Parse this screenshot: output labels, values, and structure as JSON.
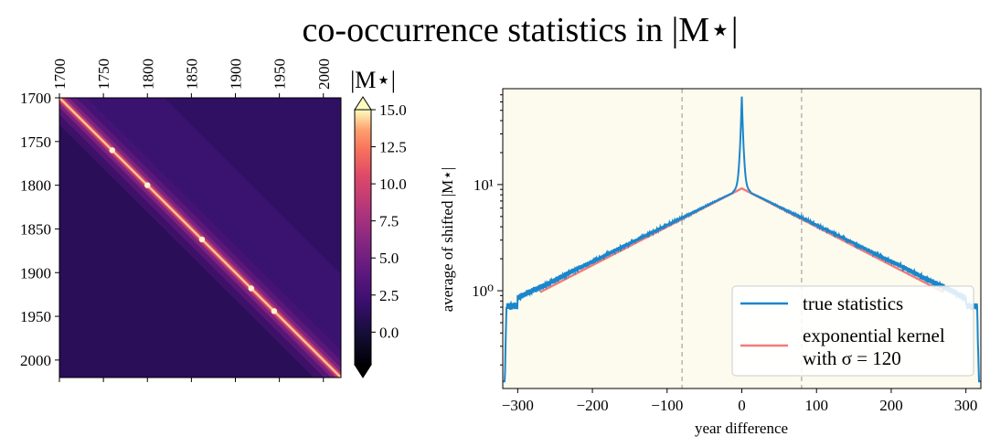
{
  "title": "co-occurrence statistics in |M⋆|",
  "colors": {
    "background_right": "#fdfaee",
    "true_line": "#1a86cc",
    "kernel_line": "#f07c78",
    "dashed": "#aaaaaa"
  },
  "chart_data": [
    {
      "type": "heatmap",
      "title": "",
      "x_ticks": [
        "1700",
        "1750",
        "1800",
        "1850",
        "1900",
        "1950",
        "2000"
      ],
      "y_ticks": [
        "1700",
        "1750",
        "1800",
        "1850",
        "1900",
        "1950",
        "2000"
      ],
      "x_range": [
        1700,
        2020
      ],
      "y_range": [
        1700,
        2020
      ],
      "colormap": "magma",
      "colorbar": {
        "label": "|M⋆|",
        "ticks": [
          "15.0",
          "12.5",
          "10.0",
          "7.5",
          "5.0",
          "2.5",
          "0.0"
        ],
        "range": [
          -2.2,
          15.0
        ],
        "extend": "both"
      },
      "bright_spots": [
        1760,
        1800,
        1862,
        1918,
        1944
      ]
    },
    {
      "type": "line",
      "xlabel": "year difference",
      "ylabel": "average of shifted |M⋆|",
      "xlim": [
        -320,
        320
      ],
      "ylim_log": [
        0.12,
        80
      ],
      "yscale": "log",
      "x_ticks": [
        "−300",
        "−200",
        "−100",
        "0",
        "100",
        "200",
        "300"
      ],
      "y_ticks": [
        "10⁰",
        "10¹"
      ],
      "vlines": [
        -80,
        80
      ],
      "series": [
        {
          "name": "true statistics",
          "peak": 65,
          "near_center": 9,
          "at_plus_minus_300": 0.72,
          "edge_drop": 0.14
        },
        {
          "name": "exponential kernel",
          "sigma": 120,
          "center": 9.2,
          "x_range": [
            -270,
            270
          ]
        }
      ],
      "legend": {
        "position": "lower-right",
        "entries": [
          "true statistics",
          "exponential kernel",
          "with σ = 120"
        ]
      }
    }
  ]
}
